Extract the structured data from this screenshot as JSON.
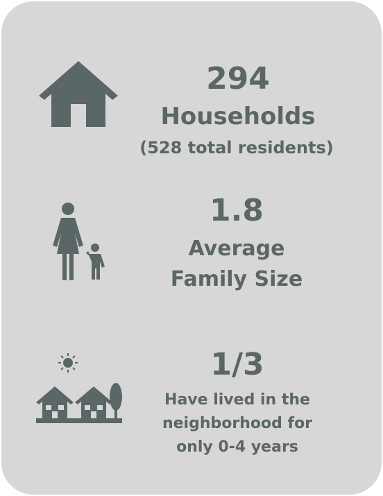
{
  "stats": [
    {
      "value": "294",
      "label": "Households",
      "note": "(528 total residents)"
    },
    {
      "value": "1.8",
      "label": "Average Family Size"
    },
    {
      "value": "1/3",
      "label": "Have lived in the neighborhood for only 0-4 years"
    }
  ]
}
